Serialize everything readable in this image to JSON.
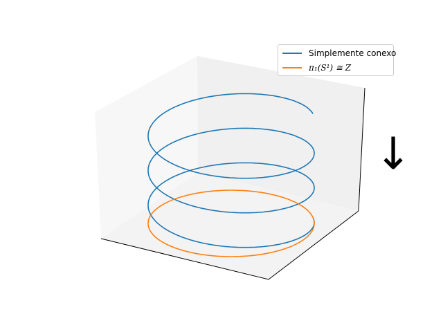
{
  "chart_data": {
    "type": "line",
    "projection": "3d",
    "grid": false,
    "axis_ticks": false,
    "legend_placement": "top-right",
    "series": [
      {
        "name": "Simplemente conexo",
        "kind": "helix",
        "color": "#1f77b4",
        "radius": 1.0,
        "turns": 3,
        "z_range": [
          0,
          3
        ]
      },
      {
        "name": "π₁(S¹) ≅ Z",
        "kind": "circle",
        "color": "#ff7f0e",
        "radius": 1.0,
        "z": 0
      }
    ],
    "annotation": {
      "symbol": "↓",
      "icon": "down-arrow-icon"
    }
  },
  "legend": {
    "items": [
      {
        "label": "Simplemente conexo",
        "color": "#1f77b4"
      },
      {
        "label": "π₁(S¹) ≅ Z",
        "color": "#ff7f0e"
      }
    ]
  }
}
